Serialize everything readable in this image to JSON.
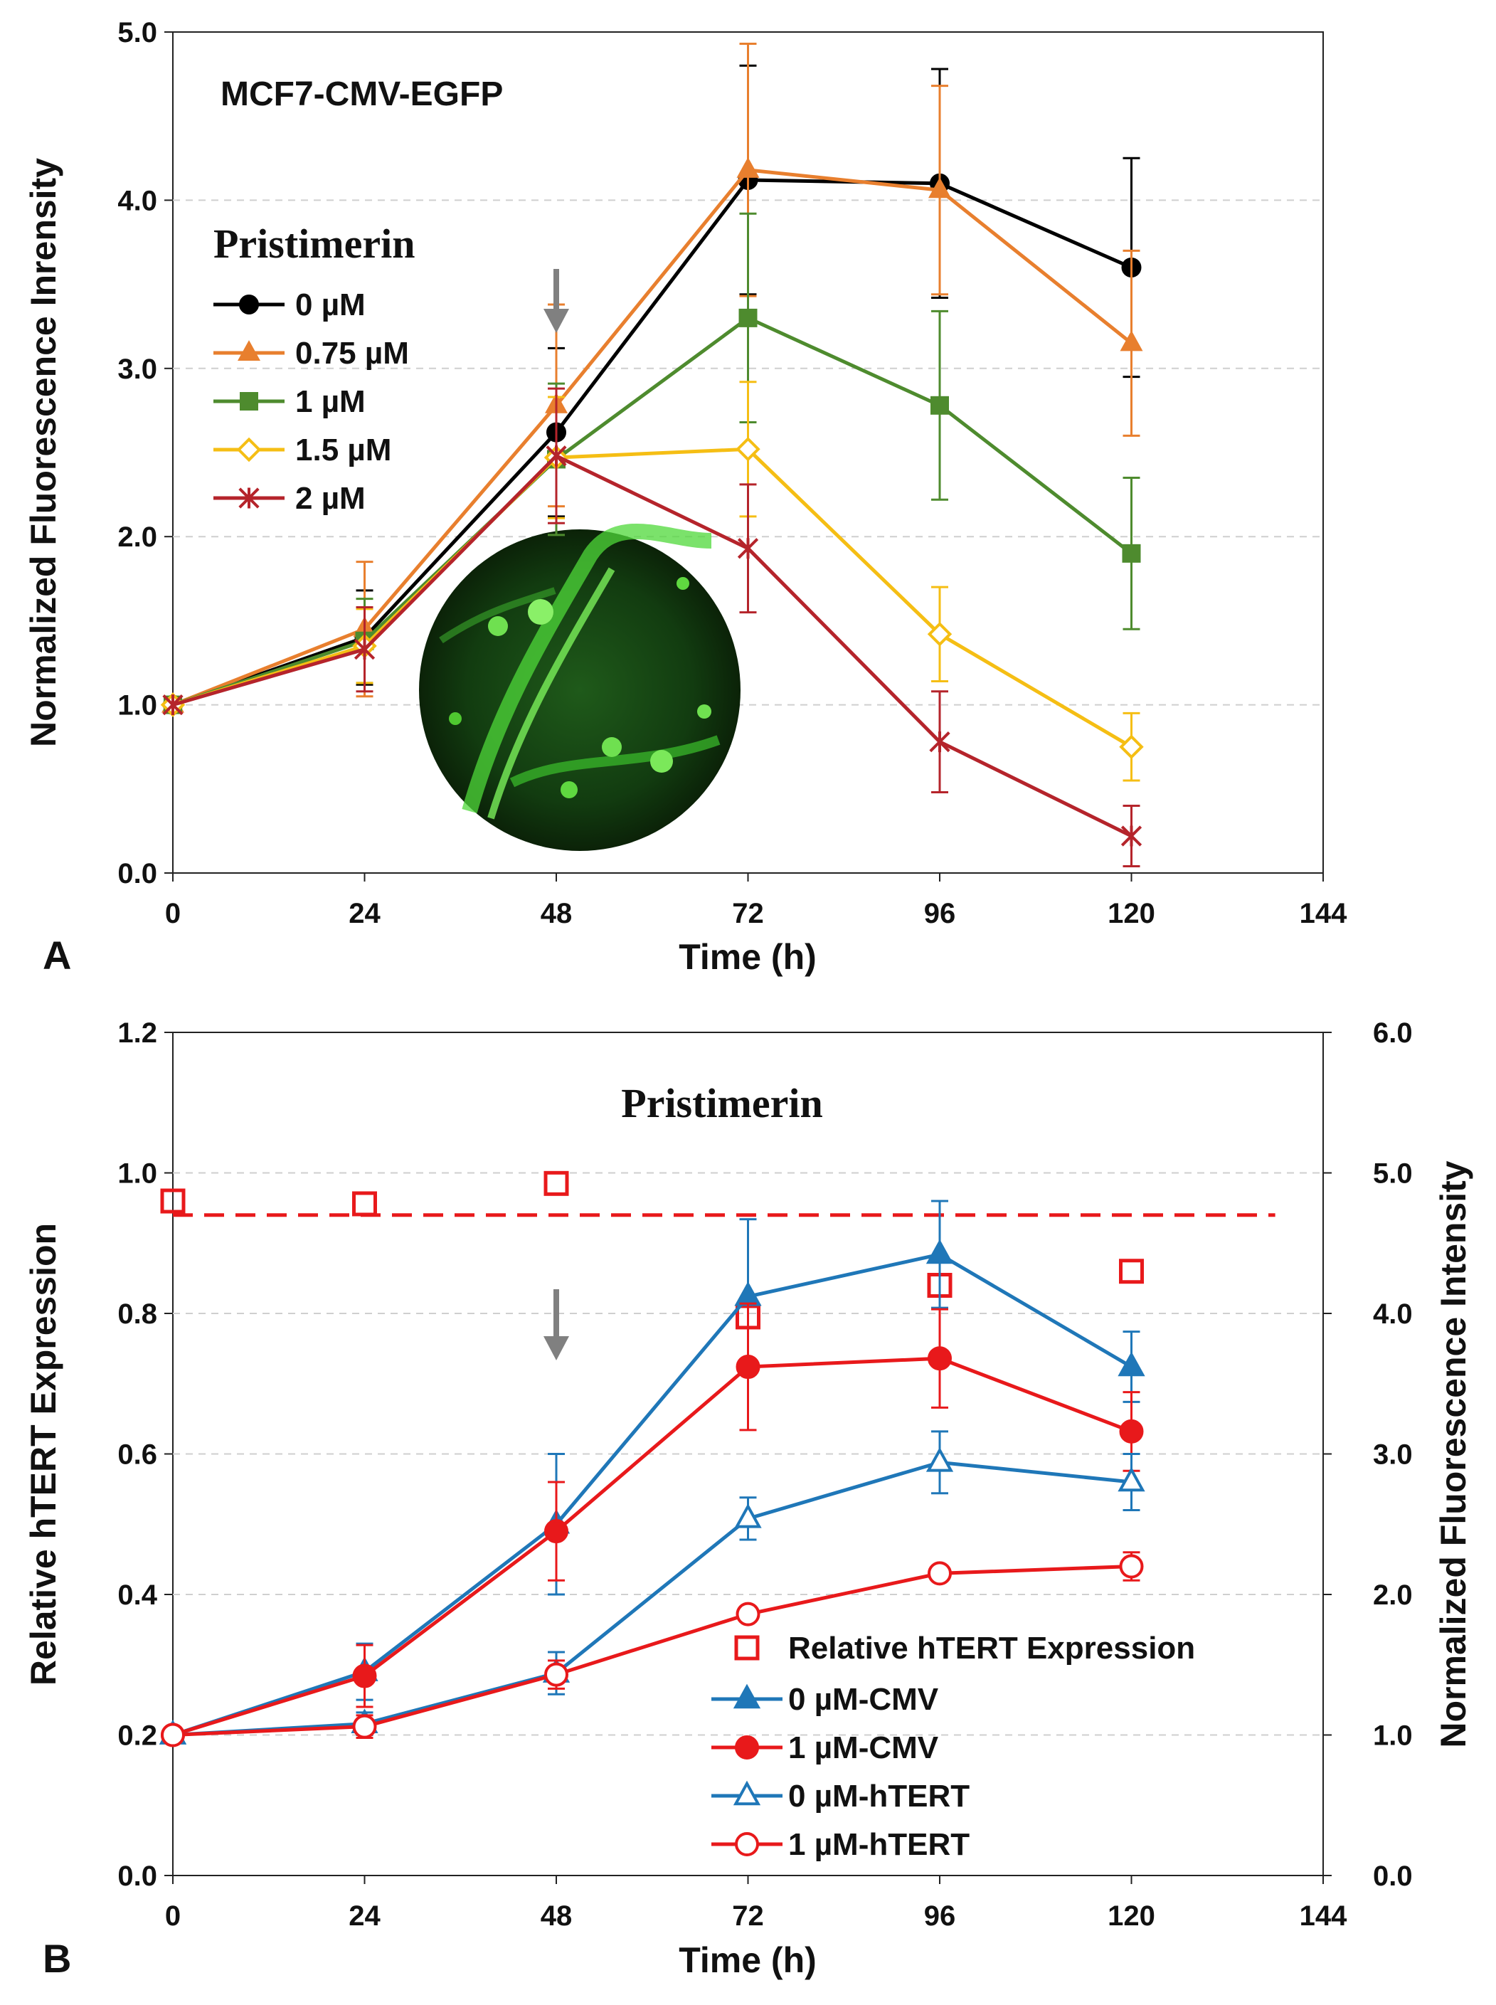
{
  "figure": {
    "colors": {
      "0uM": "#000000",
      "0.75uM": "#E87F2E",
      "1uM": "#4E8B2E",
      "1.5uM": "#F5BE14",
      "2uM": "#B5242B",
      "cmv_blue": "#1F77B8",
      "red": "#E8191B",
      "gray_arrow": "#808080"
    }
  },
  "chart_data": [
    {
      "id": "A",
      "type": "line",
      "panel_label": "A",
      "title": "MCF7-CMV-EGFP",
      "legend_title": "Pristimerin",
      "xlabel": "Time (h)",
      "ylabel": "Normalized Fluorescence Inrensity",
      "xlim": [
        0,
        144
      ],
      "ylim": [
        0,
        5
      ],
      "xticks": [
        "0",
        "24",
        "48",
        "72",
        "96",
        "120",
        "144"
      ],
      "yticks": [
        "0.0",
        "1.0",
        "2.0",
        "3.0",
        "4.0",
        "5.0"
      ],
      "grid": "horizontal dashed",
      "legend_position": "upper-left",
      "arrow_at_x": 48,
      "x": [
        0,
        24,
        48,
        72,
        96,
        120
      ],
      "series": [
        {
          "name": "0 µM",
          "key": "0uM",
          "marker": "circle",
          "values": [
            1.0,
            1.4,
            2.62,
            4.12,
            4.1,
            3.6
          ],
          "errors": [
            0.0,
            0.28,
            0.5,
            0.68,
            0.68,
            0.65
          ]
        },
        {
          "name": "0.75 µM",
          "key": "0.75uM",
          "marker": "triangle",
          "values": [
            1.0,
            1.45,
            2.78,
            4.18,
            4.06,
            3.15
          ],
          "errors": [
            0.0,
            0.4,
            0.6,
            0.75,
            0.62,
            0.55
          ]
        },
        {
          "name": "1 µM",
          "key": "1uM",
          "marker": "square",
          "values": [
            1.0,
            1.38,
            2.46,
            3.3,
            2.78,
            1.9
          ],
          "errors": [
            0.0,
            0.25,
            0.45,
            0.62,
            0.56,
            0.45
          ]
        },
        {
          "name": "1.5 µM",
          "key": "1.5uM",
          "marker": "diamond-open",
          "values": [
            1.0,
            1.35,
            2.47,
            2.52,
            1.42,
            0.75
          ],
          "errors": [
            0.0,
            0.22,
            0.36,
            0.4,
            0.28,
            0.2
          ]
        },
        {
          "name": "2 µM",
          "key": "2uM",
          "marker": "star",
          "values": [
            1.0,
            1.33,
            2.48,
            1.93,
            0.78,
            0.22
          ],
          "errors": [
            0.0,
            0.25,
            0.4,
            0.38,
            0.3,
            0.18
          ]
        }
      ]
    },
    {
      "id": "B",
      "type": "line",
      "panel_label": "B",
      "title": "Pristimerin",
      "xlabel": "Time (h)",
      "ylabel": "Relative hTERT Expression",
      "y2label": "Normalized Fluorescence Intensity",
      "xlim": [
        0,
        144
      ],
      "ylim": [
        0,
        1.2
      ],
      "y2lim": [
        0,
        6
      ],
      "xticks": [
        "0",
        "24",
        "48",
        "72",
        "96",
        "120",
        "144"
      ],
      "yticks": [
        "0.0",
        "0.2",
        "0.4",
        "0.6",
        "0.8",
        "1.0",
        "1.2"
      ],
      "y2ticks": [
        "0.0",
        "1.0",
        "2.0",
        "3.0",
        "4.0",
        "5.0",
        "6.0"
      ],
      "grid": "horizontal dashed",
      "legend_position": "lower-right",
      "arrow_at_x": 48,
      "x": [
        0,
        24,
        48,
        72,
        96,
        120
      ],
      "relative_expression": {
        "name": "Relative hTERT Expression",
        "values": [
          0.96,
          0.956,
          0.985,
          0.795,
          0.84,
          0.86
        ],
        "trend_line": [
          0.94,
          0.94
        ]
      },
      "series": [
        {
          "name": "0 µM-CMV",
          "key": "cmv_blue",
          "marker": "triangle",
          "filled": true,
          "values": [
            1.0,
            1.45,
            2.5,
            4.12,
            4.42,
            3.62
          ],
          "errors": [
            0.0,
            0.2,
            0.5,
            0.55,
            0.38,
            0.25
          ]
        },
        {
          "name": "1 µM-CMV",
          "key": "red",
          "marker": "circle",
          "filled": true,
          "values": [
            1.0,
            1.42,
            2.45,
            3.62,
            3.68,
            3.16
          ],
          "errors": [
            0.0,
            0.22,
            0.35,
            0.45,
            0.35,
            0.28
          ]
        },
        {
          "name": "0 µM-hTERT",
          "key": "cmv_blue",
          "marker": "triangle",
          "filled": false,
          "values": [
            1.0,
            1.08,
            1.44,
            2.54,
            2.94,
            2.8
          ],
          "errors": [
            0.0,
            0.08,
            0.15,
            0.15,
            0.22,
            0.2
          ]
        },
        {
          "name": "1 µM-hTERT",
          "key": "red",
          "marker": "circle",
          "filled": false,
          "values": [
            1.0,
            1.06,
            1.43,
            1.86,
            2.15,
            2.2
          ],
          "errors": [
            0.0,
            0.08,
            0.1,
            0.05,
            0.05,
            0.1
          ]
        }
      ]
    }
  ]
}
